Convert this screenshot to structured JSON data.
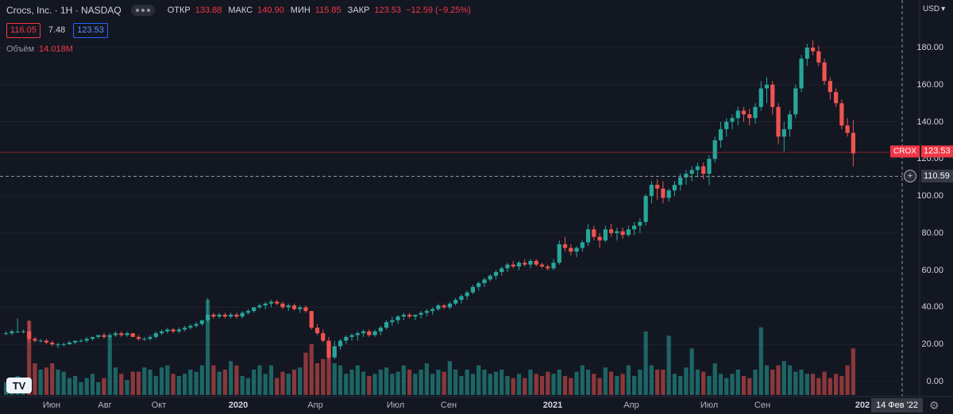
{
  "legend": {
    "title": "Crocs, Inc. · 1H · NASDAQ",
    "ohlc": [
      {
        "label": "ОТКР",
        "value": "133.88"
      },
      {
        "label": "МАКС",
        "value": "140.90"
      },
      {
        "label": "МИН",
        "value": "115.85"
      },
      {
        "label": "ЗАКР",
        "value": "123.53"
      },
      {
        "label": "",
        "value": "−12.59 (−9.25%)"
      }
    ],
    "bid": "116.05",
    "spread": "7.48",
    "ask": "123.53",
    "volume_label": "Объём",
    "volume_value": "14.018M"
  },
  "axis": {
    "currency": "USD",
    "price_ticks": [
      "180.00",
      "160.00",
      "140.00",
      "120.00",
      "100.00",
      "80.00",
      "60.00",
      "40.00",
      "20.00",
      "0.00"
    ],
    "symbol_tag": "CROX",
    "last_price": "123.53",
    "crosshair_price": "110.59",
    "crosshair_date": "14 Фев '22",
    "time_labels": [
      "Июн",
      "Авг",
      "Окт",
      "2020",
      "Апр",
      "Июл",
      "Сен",
      "2021",
      "Апр",
      "Июл",
      "Сен",
      "202"
    ]
  },
  "colors": {
    "up": "#26a69a",
    "down": "#ef5350",
    "background": "#131722"
  },
  "chart_data": {
    "type": "candlestick",
    "interval": "1W",
    "y_range": [
      -5,
      195
    ],
    "candles": [
      [
        26,
        27,
        25,
        26,
        6
      ],
      [
        26,
        28,
        25,
        27,
        5
      ],
      [
        27,
        34,
        26,
        27,
        9
      ],
      [
        27,
        28,
        26,
        27,
        5
      ],
      [
        27,
        33,
        21,
        23,
        35
      ],
      [
        23,
        24,
        21,
        22,
        15
      ],
      [
        22,
        23,
        21,
        22,
        12
      ],
      [
        22,
        23,
        20,
        21,
        13
      ],
      [
        21,
        22,
        19,
        20,
        15
      ],
      [
        20,
        21,
        18,
        20,
        12
      ],
      [
        20,
        21,
        19,
        20,
        11
      ],
      [
        20,
        22,
        20,
        21,
        8
      ],
      [
        21,
        22,
        20,
        22,
        9
      ],
      [
        22,
        23,
        21,
        22,
        6
      ],
      [
        22,
        24,
        21,
        23,
        8
      ],
      [
        23,
        24,
        22,
        24,
        10
      ],
      [
        24,
        25,
        23,
        25,
        6
      ],
      [
        25,
        26,
        23,
        24,
        8
      ],
      [
        24,
        26,
        23,
        25,
        28
      ],
      [
        25,
        27,
        24,
        26,
        13
      ],
      [
        26,
        27,
        24,
        25,
        10
      ],
      [
        25,
        27,
        24,
        26,
        7
      ],
      [
        26,
        26,
        24,
        24,
        11
      ],
      [
        24,
        25,
        22,
        23,
        11
      ],
      [
        23,
        24,
        22,
        23,
        13
      ],
      [
        23,
        25,
        22,
        24,
        12
      ],
      [
        24,
        27,
        23,
        26,
        9
      ],
      [
        26,
        28,
        25,
        27,
        13
      ],
      [
        27,
        29,
        26,
        28,
        14
      ],
      [
        28,
        29,
        26,
        27,
        10
      ],
      [
        27,
        29,
        26,
        28,
        9
      ],
      [
        28,
        30,
        27,
        29,
        10
      ],
      [
        29,
        31,
        28,
        30,
        12
      ],
      [
        30,
        32,
        29,
        31,
        11
      ],
      [
        31,
        33,
        30,
        33,
        14
      ],
      [
        33,
        45,
        32,
        36,
        45
      ],
      [
        36,
        37,
        34,
        35,
        14
      ],
      [
        35,
        37,
        34,
        36,
        11
      ],
      [
        36,
        37,
        34,
        35,
        12
      ],
      [
        35,
        37,
        34,
        36,
        16
      ],
      [
        36,
        37,
        34,
        35,
        14
      ],
      [
        35,
        38,
        34,
        37,
        9
      ],
      [
        37,
        39,
        36,
        38,
        8
      ],
      [
        38,
        40,
        37,
        40,
        12
      ],
      [
        40,
        42,
        39,
        41,
        14
      ],
      [
        41,
        43,
        39,
        42,
        10
      ],
      [
        42,
        44,
        40,
        43,
        14
      ],
      [
        43,
        44,
        41,
        42,
        8
      ],
      [
        42,
        43,
        39,
        40,
        11
      ],
      [
        40,
        42,
        38,
        41,
        10
      ],
      [
        41,
        42,
        38,
        39,
        12
      ],
      [
        39,
        41,
        37,
        40,
        13
      ],
      [
        40,
        41,
        37,
        38,
        20
      ],
      [
        38,
        38,
        28,
        29,
        24
      ],
      [
        29,
        31,
        25,
        26,
        15
      ],
      [
        26,
        28,
        21,
        22,
        17
      ],
      [
        22,
        24,
        12,
        13,
        25
      ],
      [
        13,
        22,
        12,
        19,
        15
      ],
      [
        19,
        23,
        17,
        22,
        14
      ],
      [
        22,
        25,
        20,
        24,
        10
      ],
      [
        24,
        26,
        22,
        25,
        12
      ],
      [
        25,
        27,
        22,
        26,
        14
      ],
      [
        26,
        28,
        24,
        27,
        11
      ],
      [
        27,
        28,
        24,
        25,
        9
      ],
      [
        25,
        28,
        24,
        27,
        10
      ],
      [
        27,
        30,
        25,
        29,
        12
      ],
      [
        29,
        33,
        28,
        32,
        13
      ],
      [
        32,
        35,
        30,
        33,
        10
      ],
      [
        33,
        36,
        31,
        35,
        11
      ],
      [
        35,
        37,
        33,
        36,
        14
      ],
      [
        36,
        37,
        34,
        35,
        12
      ],
      [
        35,
        36,
        33,
        36,
        10
      ],
      [
        36,
        38,
        34,
        37,
        12
      ],
      [
        37,
        39,
        35,
        38,
        15
      ],
      [
        38,
        40,
        36,
        39,
        10
      ],
      [
        39,
        42,
        38,
        41,
        12
      ],
      [
        41,
        42,
        39,
        40,
        11
      ],
      [
        40,
        43,
        39,
        42,
        16
      ],
      [
        42,
        45,
        41,
        44,
        12
      ],
      [
        44,
        47,
        42,
        46,
        9
      ],
      [
        46,
        49,
        44,
        48,
        12
      ],
      [
        48,
        52,
        47,
        51,
        10
      ],
      [
        51,
        54,
        49,
        53,
        14
      ],
      [
        53,
        56,
        51,
        55,
        12
      ],
      [
        55,
        58,
        54,
        57,
        10
      ],
      [
        57,
        60,
        55,
        59,
        11
      ],
      [
        59,
        62,
        57,
        61,
        12
      ],
      [
        61,
        64,
        59,
        63,
        9
      ],
      [
        63,
        65,
        61,
        62,
        8
      ],
      [
        62,
        65,
        60,
        64,
        10
      ],
      [
        64,
        66,
        62,
        63,
        8
      ],
      [
        63,
        66,
        61,
        65,
        12
      ],
      [
        65,
        66,
        62,
        63,
        10
      ],
      [
        63,
        64,
        61,
        62,
        9
      ],
      [
        62,
        63,
        60,
        61,
        11
      ],
      [
        61,
        66,
        60,
        64,
        10
      ],
      [
        64,
        76,
        63,
        74,
        12
      ],
      [
        74,
        78,
        70,
        72,
        9
      ],
      [
        72,
        74,
        68,
        70,
        8
      ],
      [
        70,
        73,
        67,
        72,
        11
      ],
      [
        72,
        76,
        70,
        75,
        14
      ],
      [
        75,
        85,
        73,
        82,
        12
      ],
      [
        82,
        84,
        76,
        78,
        10
      ],
      [
        78,
        80,
        72,
        76,
        8
      ],
      [
        76,
        84,
        75,
        82,
        13
      ],
      [
        82,
        85,
        78,
        80,
        11
      ],
      [
        80,
        83,
        76,
        81,
        9
      ],
      [
        81,
        83,
        77,
        79,
        10
      ],
      [
        79,
        84,
        78,
        82,
        14
      ],
      [
        82,
        86,
        79,
        84,
        9
      ],
      [
        84,
        88,
        80,
        86,
        12
      ],
      [
        86,
        101,
        84,
        100,
        30
      ],
      [
        100,
        108,
        96,
        106,
        14
      ],
      [
        106,
        109,
        98,
        104,
        12
      ],
      [
        104,
        108,
        96,
        99,
        12
      ],
      [
        99,
        104,
        97,
        103,
        28
      ],
      [
        103,
        108,
        100,
        106,
        10
      ],
      [
        106,
        112,
        103,
        110,
        9
      ],
      [
        110,
        114,
        106,
        112,
        13
      ],
      [
        112,
        116,
        108,
        114,
        22
      ],
      [
        114,
        118,
        110,
        116,
        12
      ],
      [
        116,
        118,
        109,
        112,
        11
      ],
      [
        112,
        122,
        106,
        120,
        9
      ],
      [
        120,
        132,
        118,
        130,
        15
      ],
      [
        130,
        140,
        126,
        136,
        10
      ],
      [
        136,
        142,
        132,
        140,
        8
      ],
      [
        140,
        144,
        136,
        142,
        10
      ],
      [
        142,
        148,
        138,
        146,
        12
      ],
      [
        146,
        148,
        140,
        144,
        9
      ],
      [
        144,
        147,
        138,
        142,
        8
      ],
      [
        142,
        150,
        139,
        148,
        12
      ],
      [
        148,
        162,
        146,
        158,
        32
      ],
      [
        158,
        164,
        150,
        160,
        14
      ],
      [
        160,
        162,
        144,
        148,
        12
      ],
      [
        148,
        150,
        128,
        132,
        14
      ],
      [
        132,
        140,
        124,
        136,
        16
      ],
      [
        136,
        146,
        132,
        144,
        14
      ],
      [
        144,
        160,
        142,
        158,
        11
      ],
      [
        158,
        176,
        156,
        174,
        12
      ],
      [
        174,
        182,
        170,
        180,
        10
      ],
      [
        180,
        184,
        176,
        178,
        10
      ],
      [
        178,
        181,
        170,
        172,
        8
      ],
      [
        172,
        174,
        160,
        162,
        11
      ],
      [
        162,
        164,
        152,
        156,
        8
      ],
      [
        156,
        158,
        148,
        150,
        10
      ],
      [
        150,
        152,
        136,
        138,
        9
      ],
      [
        138,
        142,
        132,
        134,
        14
      ],
      [
        134,
        141,
        116,
        123,
        22
      ]
    ]
  }
}
